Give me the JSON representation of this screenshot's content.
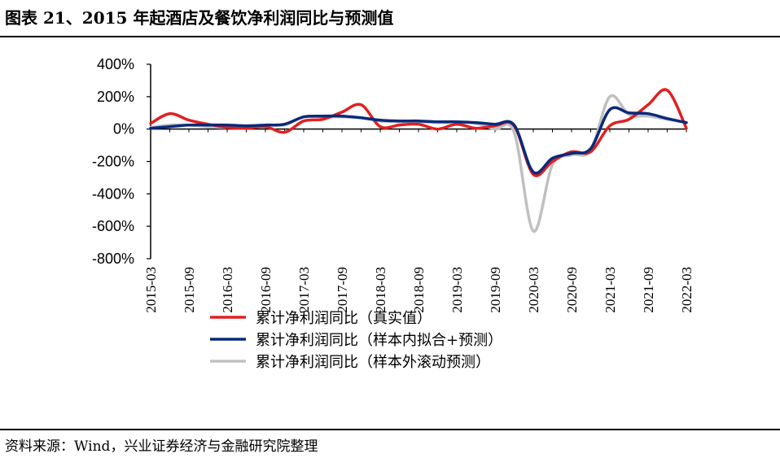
{
  "header": {
    "title": "图表 21、2015 年起酒店及餐饮净利润同比与预测值"
  },
  "footer": {
    "source": "资料来源：Wind，兴业证券经济与金融研究院整理"
  },
  "chart_data": {
    "type": "line",
    "title": "图表 21、2015 年起酒店及餐饮净利润同比与预测值",
    "xlabel": "",
    "ylabel": "",
    "ylim": [
      -800,
      400
    ],
    "y_unit": "%",
    "yticks": [
      "400%",
      "200%",
      "0%",
      "-200%",
      "-400%",
      "-600%",
      "-800%"
    ],
    "ytick_values": [
      400,
      200,
      0,
      -200,
      -400,
      -600,
      -800
    ],
    "x_tick_labels": [
      "2015-03",
      "2015-09",
      "2016-03",
      "2016-09",
      "2017-03",
      "2017-09",
      "2018-03",
      "2018-09",
      "2019-03",
      "2019-09",
      "2020-03",
      "2020-09",
      "2021-03",
      "2021-09",
      "2022-03"
    ],
    "legend_position": "bottom",
    "grid": false,
    "x": [
      "2015-03",
      "2015-06",
      "2015-09",
      "2015-12",
      "2016-03",
      "2016-06",
      "2016-09",
      "2016-12",
      "2017-03",
      "2017-06",
      "2017-09",
      "2017-12",
      "2018-03",
      "2018-06",
      "2018-09",
      "2018-12",
      "2019-03",
      "2019-06",
      "2019-09",
      "2019-12",
      "2020-03",
      "2020-06",
      "2020-09",
      "2020-12",
      "2021-03",
      "2021-06",
      "2021-09",
      "2021-12",
      "2022-03"
    ],
    "series": [
      {
        "name": "累计净利润同比（真实值）",
        "color": "#e02020",
        "values": [
          35,
          95,
          55,
          30,
          10,
          5,
          15,
          -20,
          50,
          60,
          105,
          150,
          15,
          25,
          30,
          0,
          30,
          5,
          20,
          20,
          -280,
          -200,
          -140,
          -140,
          20,
          60,
          150,
          240,
          5
        ]
      },
      {
        "name": "累计净利润同比（样本内拟合+预测）",
        "color": "#0a2a7a",
        "values": [
          5,
          15,
          25,
          25,
          25,
          20,
          25,
          30,
          75,
          80,
          80,
          70,
          55,
          50,
          50,
          45,
          45,
          40,
          30,
          25,
          -265,
          -180,
          -150,
          -120,
          120,
          100,
          95,
          65,
          40
        ]
      },
      {
        "name": "累计净利润同比（样本外滚动预测）",
        "color": "#c0c0c0",
        "values": [
          10,
          25,
          25,
          15,
          10,
          15,
          25,
          25,
          75,
          75,
          75,
          70,
          50,
          45,
          45,
          40,
          40,
          35,
          0,
          -20,
          -630,
          -220,
          -160,
          -130,
          200,
          90,
          80,
          60,
          40
        ]
      }
    ]
  }
}
